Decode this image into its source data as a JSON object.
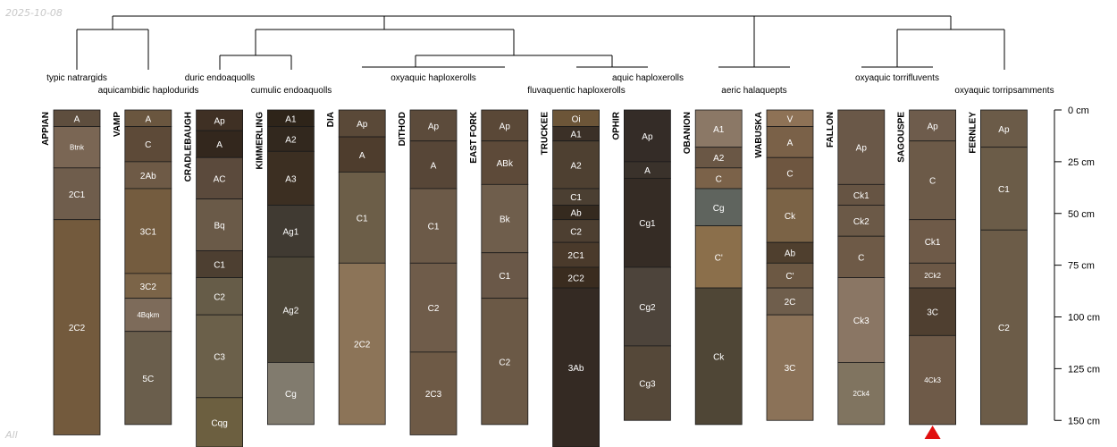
{
  "meta": {
    "date": "2025-10-08",
    "footer_note": "All"
  },
  "depth_axis": {
    "ticks": [
      {
        "value": 0,
        "label": "0 cm"
      },
      {
        "value": 25,
        "label": "25 cm"
      },
      {
        "value": 50,
        "label": "50 cm"
      },
      {
        "value": 75,
        "label": "75 cm"
      },
      {
        "value": 100,
        "label": "100 cm"
      },
      {
        "value": 125,
        "label": "125 cm"
      },
      {
        "value": 150,
        "label": "150 cm"
      }
    ]
  },
  "taxa": [
    {
      "label": "typic natrargids"
    },
    {
      "label": "aquicambidic haplodurids"
    },
    {
      "label": "duric endoaquolls"
    },
    {
      "label": "cumulic endoaquolls"
    },
    {
      "label": "oxyaquic haploxerolls"
    },
    {
      "label": "aquic haploxerolls"
    },
    {
      "label": "fluvaquentic haploxerolls"
    },
    {
      "label": "aeric halaquepts"
    },
    {
      "label": "oxyaquic torrifluvents"
    },
    {
      "label": "oxyaquic torripsamments"
    }
  ],
  "profiles": [
    {
      "name": "APPIAN",
      "horizons": [
        {
          "name": "A",
          "top": 0,
          "bottom": 8,
          "color": "#5e4e3e"
        },
        {
          "name": "Btnk",
          "top": 8,
          "bottom": 28,
          "color": "#7a6654"
        },
        {
          "name": "2C1",
          "top": 28,
          "bottom": 53,
          "color": "#6f5d4c"
        },
        {
          "name": "2C2",
          "top": 53,
          "bottom": 157,
          "color": "#735a3d"
        }
      ]
    },
    {
      "name": "VAMP",
      "horizons": [
        {
          "name": "A",
          "top": 0,
          "bottom": 8,
          "color": "#6a563f"
        },
        {
          "name": "C",
          "top": 8,
          "bottom": 25,
          "color": "#5d4a38"
        },
        {
          "name": "2Ab",
          "top": 25,
          "bottom": 38,
          "color": "#6e5a46"
        },
        {
          "name": "3C1",
          "top": 38,
          "bottom": 79,
          "color": "#745c3f"
        },
        {
          "name": "3C2",
          "top": 79,
          "bottom": 91,
          "color": "#7b6448"
        },
        {
          "name": "4Bqkm",
          "top": 91,
          "bottom": 107,
          "color": "#7d6b5a"
        },
        {
          "name": "5C",
          "top": 107,
          "bottom": 152,
          "color": "#6a5e4c"
        }
      ]
    },
    {
      "name": "CRADLEBAUGH",
      "horizons": [
        {
          "name": "Ap",
          "top": 0,
          "bottom": 10,
          "color": "#3f3024"
        },
        {
          "name": "A",
          "top": 10,
          "bottom": 23,
          "color": "#33271d"
        },
        {
          "name": "AC",
          "top": 23,
          "bottom": 43,
          "color": "#5b4a3c"
        },
        {
          "name": "Bq",
          "top": 43,
          "bottom": 68,
          "color": "#6a5a48"
        },
        {
          "name": "C1",
          "top": 68,
          "bottom": 81,
          "color": "#4d3f31"
        },
        {
          "name": "C2",
          "top": 81,
          "bottom": 99,
          "color": "#665c48"
        },
        {
          "name": "C3",
          "top": 99,
          "bottom": 139,
          "color": "#6b604a"
        },
        {
          "name": "Cqg",
          "top": 139,
          "bottom": 165,
          "color": "#6c5f40"
        }
      ]
    },
    {
      "name": "KIMMERLING",
      "horizons": [
        {
          "name": "A1",
          "top": 0,
          "bottom": 8,
          "color": "#2e2419"
        },
        {
          "name": "A2",
          "top": 8,
          "bottom": 20,
          "color": "#32281e"
        },
        {
          "name": "A3",
          "top": 20,
          "bottom": 46,
          "color": "#3c2f22"
        },
        {
          "name": "Ag1",
          "top": 46,
          "bottom": 71,
          "color": "#403a32"
        },
        {
          "name": "Ag2",
          "top": 71,
          "bottom": 122,
          "color": "#4c4537"
        },
        {
          "name": "Cg",
          "top": 122,
          "bottom": 152,
          "color": "#817b6e"
        }
      ]
    },
    {
      "name": "DIA",
      "horizons": [
        {
          "name": "Ap",
          "top": 0,
          "bottom": 13,
          "color": "#5a4938"
        },
        {
          "name": "A",
          "top": 13,
          "bottom": 30,
          "color": "#4e3d2d"
        },
        {
          "name": "C1",
          "top": 30,
          "bottom": 74,
          "color": "#6c5e48"
        },
        {
          "name": "2C2",
          "top": 74,
          "bottom": 152,
          "color": "#8c7458"
        }
      ]
    },
    {
      "name": "DITHOD",
      "horizons": [
        {
          "name": "Ap",
          "top": 0,
          "bottom": 15,
          "color": "#5c4b3b"
        },
        {
          "name": "A",
          "top": 15,
          "bottom": 38,
          "color": "#574637"
        },
        {
          "name": "C1",
          "top": 38,
          "bottom": 74,
          "color": "#6c5a48"
        },
        {
          "name": "C2",
          "top": 74,
          "bottom": 117,
          "color": "#6f5c4a"
        },
        {
          "name": "2C3",
          "top": 117,
          "bottom": 157,
          "color": "#6e5a46"
        }
      ]
    },
    {
      "name": "EAST FORK",
      "horizons": [
        {
          "name": "Ap",
          "top": 0,
          "bottom": 15,
          "color": "#5a4837"
        },
        {
          "name": "ABk",
          "top": 15,
          "bottom": 36,
          "color": "#5d4a39"
        },
        {
          "name": "Bk",
          "top": 36,
          "bottom": 69,
          "color": "#6f5e4c"
        },
        {
          "name": "C1",
          "top": 69,
          "bottom": 91,
          "color": "#6a5848"
        },
        {
          "name": "C2",
          "top": 91,
          "bottom": 152,
          "color": "#6b5946"
        }
      ]
    },
    {
      "name": "TRUCKEE",
      "horizons": [
        {
          "name": "Oi",
          "top": 0,
          "bottom": 8,
          "color": "#6c5538"
        },
        {
          "name": "A1",
          "top": 8,
          "bottom": 15,
          "color": "#3b3027"
        },
        {
          "name": "A2",
          "top": 15,
          "bottom": 38,
          "color": "#4e4031"
        },
        {
          "name": "C1",
          "top": 38,
          "bottom": 46,
          "color": "#4b3f32"
        },
        {
          "name": "Ab",
          "top": 46,
          "bottom": 53,
          "color": "#352a1f"
        },
        {
          "name": "C2",
          "top": 53,
          "bottom": 64,
          "color": "#4d3f31"
        },
        {
          "name": "2C1",
          "top": 64,
          "bottom": 76,
          "color": "#4a3a2b"
        },
        {
          "name": "2C2",
          "top": 76,
          "bottom": 86,
          "color": "#3a2c1f"
        },
        {
          "name": "3Ab",
          "top": 86,
          "bottom": 165,
          "color": "#342a23"
        }
      ]
    },
    {
      "name": "OPHIR",
      "horizons": [
        {
          "name": "Ap",
          "top": 0,
          "bottom": 25,
          "color": "#342c27"
        },
        {
          "name": "A",
          "top": 25,
          "bottom": 33,
          "color": "#3a322b"
        },
        {
          "name": "Cg1",
          "top": 33,
          "bottom": 76,
          "color": "#352c25"
        },
        {
          "name": "Cg2",
          "top": 76,
          "bottom": 114,
          "color": "#4d443b"
        },
        {
          "name": "Cg3",
          "top": 114,
          "bottom": 150,
          "color": "#554839"
        }
      ]
    },
    {
      "name": "OBANION",
      "horizons": [
        {
          "name": "A1",
          "top": 0,
          "bottom": 18,
          "color": "#8b7866"
        },
        {
          "name": "A2",
          "top": 18,
          "bottom": 28,
          "color": "#6a5745"
        },
        {
          "name": "C",
          "top": 28,
          "bottom": 38,
          "color": "#7b6249"
        },
        {
          "name": "Cg",
          "top": 38,
          "bottom": 56,
          "color": "#5f645e"
        },
        {
          "name": "C'",
          "top": 56,
          "bottom": 86,
          "color": "#8b6f4b"
        },
        {
          "name": "Ck",
          "top": 86,
          "bottom": 152,
          "color": "#4f4636"
        }
      ]
    },
    {
      "name": "WABUSKA",
      "horizons": [
        {
          "name": "V",
          "top": 0,
          "bottom": 8,
          "color": "#8e7256"
        },
        {
          "name": "A",
          "top": 8,
          "bottom": 23,
          "color": "#7a6148"
        },
        {
          "name": "C",
          "top": 23,
          "bottom": 38,
          "color": "#6e5640"
        },
        {
          "name": "Ck",
          "top": 38,
          "bottom": 64,
          "color": "#7b6346"
        },
        {
          "name": "Ab",
          "top": 64,
          "bottom": 74,
          "color": "#4f3f2e"
        },
        {
          "name": "C'",
          "top": 74,
          "bottom": 86,
          "color": "#6c5843"
        },
        {
          "name": "2C",
          "top": 86,
          "bottom": 99,
          "color": "#6f5e4c"
        },
        {
          "name": "3C",
          "top": 99,
          "bottom": 150,
          "color": "#8b7258"
        }
      ]
    },
    {
      "name": "FALLON",
      "horizons": [
        {
          "name": "Ap",
          "top": 0,
          "bottom": 36,
          "color": "#6a5848"
        },
        {
          "name": "Ck1",
          "top": 36,
          "bottom": 46,
          "color": "#665443"
        },
        {
          "name": "Ck2",
          "top": 46,
          "bottom": 61,
          "color": "#6b5947"
        },
        {
          "name": "C",
          "top": 61,
          "bottom": 81,
          "color": "#6e5a47"
        },
        {
          "name": "Ck3",
          "top": 81,
          "bottom": 122,
          "color": "#8a7664"
        },
        {
          "name": "2Ck4",
          "top": 122,
          "bottom": 152,
          "color": "#807460"
        }
      ]
    },
    {
      "name": "SAGOUSPE",
      "horizons": [
        {
          "name": "Ap",
          "top": 0,
          "bottom": 15,
          "color": "#6e5c4c"
        },
        {
          "name": "C",
          "top": 15,
          "bottom": 53,
          "color": "#6c5a48"
        },
        {
          "name": "Ck1",
          "top": 53,
          "bottom": 74,
          "color": "#6e5a48"
        },
        {
          "name": "2Ck2",
          "top": 74,
          "bottom": 86,
          "color": "#6c5846"
        },
        {
          "name": "3C",
          "top": 86,
          "bottom": 109,
          "color": "#4f3f30"
        },
        {
          "name": "4Ck3",
          "top": 109,
          "bottom": 152,
          "color": "#6e5a48"
        }
      ]
    },
    {
      "name": "FERNLEY",
      "horizons": [
        {
          "name": "Ap",
          "top": 0,
          "bottom": 18,
          "color": "#6b5b48"
        },
        {
          "name": "C1",
          "top": 18,
          "bottom": 58,
          "color": "#6b5c48"
        },
        {
          "name": "C2",
          "top": 58,
          "bottom": 152,
          "color": "#6c5c48"
        }
      ]
    }
  ],
  "marker": {
    "profile": "SAGOUSPE",
    "color": "#e01010"
  }
}
